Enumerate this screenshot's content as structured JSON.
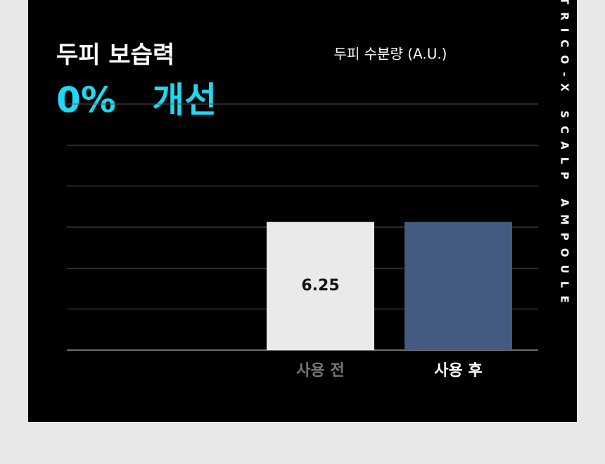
{
  "chart_data": {
    "type": "bar",
    "brand": "TRICO-X SCALP AMPOULE",
    "title": "두피 보습력",
    "headline": "0% 개선",
    "y_label": "두피 수분량 (A.U.)",
    "categories": [
      "사용 전",
      "사용 후"
    ],
    "values": [
      6.25,
      6.25
    ],
    "value_labels": [
      "6.25",
      null
    ],
    "colors": [
      "#e9eaec",
      "#435b80"
    ],
    "label_colors": [
      "#777777",
      "#ffffff"
    ],
    "ylim": [
      0,
      12
    ],
    "yticks": [
      0,
      2,
      4,
      6,
      8,
      10,
      12
    ],
    "grid": true
  }
}
